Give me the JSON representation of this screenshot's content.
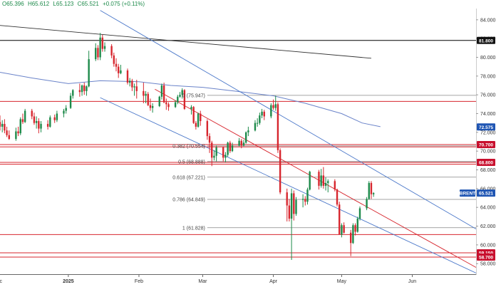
{
  "ohlc": {
    "open": "O65.396",
    "high": "H65.612",
    "low": "L65.123",
    "close": "C65.521",
    "change": "+0.075 (+0.11%)"
  },
  "colors": {
    "up": "#1d8a4a",
    "down": "#d7262e",
    "channel": "#4a77c9",
    "ma": "#6a83c9",
    "trend": "#333333",
    "hline_black": "#000000",
    "hline_red": "#d7262e",
    "tag_blue": "#1f55b3",
    "tag_red": "#c8102e",
    "tag_black": "#111111",
    "fib": "#888888"
  },
  "chart_data": {
    "type": "candlestick",
    "symbol": "BRENT",
    "last_price": "65.521",
    "ylim": [
      56.8,
      85.2
    ],
    "y_ticks": [
      "84.000",
      "82.000",
      "80.000",
      "78.000",
      "76.000",
      "74.000",
      "72.000",
      "70.000",
      "68.000",
      "66.000",
      "64.000",
      "62.000",
      "60.000",
      "58.000"
    ],
    "x_ticks": [
      {
        "label": "Dec",
        "date": "2024-12-01"
      },
      {
        "label": "2025",
        "date": "2025-01-01"
      },
      {
        "label": "Feb",
        "date": "2025-02-01"
      },
      {
        "label": "Mar",
        "date": "2025-03-01"
      },
      {
        "label": "Apr",
        "date": "2025-04-01"
      },
      {
        "label": "May",
        "date": "2025-05-01"
      },
      {
        "label": "Jun",
        "date": "2025-06-01"
      }
    ],
    "xlim": [
      "2024-12-02",
      "2025-06-29"
    ],
    "price_tags": [
      {
        "label": "81.800",
        "value": 81.8,
        "style": "black"
      },
      {
        "label": "72.575",
        "value": 72.575,
        "style": "blue"
      },
      {
        "label": "70.700",
        "value": 70.7,
        "style": "red"
      },
      {
        "label": "68.800",
        "value": 68.8,
        "style": "red"
      },
      {
        "label": "BRENT",
        "value": 65.521,
        "style": "blue"
      },
      {
        "label": "65.521",
        "value": 65.521,
        "style": "blue"
      },
      {
        "label": "59.150",
        "value": 59.15,
        "style": "red"
      },
      {
        "label": "58.700",
        "value": 58.7,
        "style": "red"
      }
    ],
    "horizontal_lines": [
      {
        "value": 81.8,
        "color": "black"
      },
      {
        "value": 75.3,
        "color": "red"
      },
      {
        "value": 70.7,
        "color": "red"
      },
      {
        "value": 70.45,
        "color": "red"
      },
      {
        "value": 68.8,
        "color": "red"
      },
      {
        "value": 68.6,
        "color": "red"
      },
      {
        "value": 61.1,
        "color": "red"
      },
      {
        "value": 59.15,
        "color": "red"
      },
      {
        "value": 58.7,
        "color": "red"
      }
    ],
    "fibonacci": {
      "start_date": "2025-03-03",
      "levels": [
        {
          "label": "0 (75.947)",
          "value": 75.947
        },
        {
          "label": "0.382 (70.554)",
          "value": 70.554
        },
        {
          "label": "0.5 (68.888)",
          "value": 68.888
        },
        {
          "label": "0.618 (67.221)",
          "value": 67.221
        },
        {
          "label": "0.786 (64.849)",
          "value": 64.849
        },
        {
          "label": "1 (61.828)",
          "value": 61.828
        }
      ]
    },
    "trendlines": [
      {
        "name": "downtrend",
        "color": "trend",
        "points": [
          [
            "2024-12-02",
            83.4
          ],
          [
            "2025-05-14",
            79.9
          ]
        ]
      },
      {
        "name": "channel-upper",
        "color": "channel",
        "points": [
          [
            "2025-01-15",
            85.0
          ],
          [
            "2025-06-29",
            61.7
          ]
        ]
      },
      {
        "name": "channel-lower",
        "color": "channel",
        "points": [
          [
            "2025-01-15",
            75.7
          ],
          [
            "2025-06-29",
            57.0
          ]
        ]
      },
      {
        "name": "channel-mid",
        "color": "down",
        "points": [
          [
            "2025-02-08",
            76.6
          ],
          [
            "2025-06-29",
            57.6
          ]
        ]
      }
    ],
    "moving_average": {
      "color": "ma",
      "points": [
        [
          "2024-12-02",
          78.4
        ],
        [
          "2024-12-16",
          77.8
        ],
        [
          "2025-01-01",
          77.2
        ],
        [
          "2025-01-15",
          77.5
        ],
        [
          "2025-02-01",
          77.4
        ],
        [
          "2025-02-15",
          77.0
        ],
        [
          "2025-03-01",
          76.8
        ],
        [
          "2025-03-15",
          76.4
        ],
        [
          "2025-04-01",
          75.9
        ],
        [
          "2025-04-15",
          75.1
        ],
        [
          "2025-05-01",
          74.0
        ],
        [
          "2025-05-10",
          73.0
        ],
        [
          "2025-05-18",
          72.6
        ]
      ]
    },
    "candles": [
      [
        "2024-12-02",
        73.1,
        73.8,
        72.2,
        72.6
      ],
      [
        "2024-12-03",
        72.6,
        73.3,
        72.0,
        72.9
      ],
      [
        "2024-12-04",
        72.9,
        73.4,
        71.9,
        72.2
      ],
      [
        "2024-12-05",
        72.2,
        72.6,
        71.5,
        71.7
      ],
      [
        "2024-12-06",
        71.7,
        72.2,
        71.2,
        71.3
      ],
      [
        "2024-12-09",
        71.3,
        72.5,
        71.1,
        72.1
      ],
      [
        "2024-12-10",
        72.1,
        72.6,
        71.6,
        71.9
      ],
      [
        "2024-12-11",
        71.9,
        73.6,
        71.7,
        73.4
      ],
      [
        "2024-12-12",
        73.4,
        74.0,
        72.9,
        73.1
      ],
      [
        "2024-12-13",
        73.1,
        74.5,
        73.0,
        74.3
      ],
      [
        "2024-12-16",
        74.3,
        74.5,
        73.4,
        73.7
      ],
      [
        "2024-12-17",
        73.7,
        74.1,
        72.8,
        73.0
      ],
      [
        "2024-12-18",
        73.0,
        73.7,
        72.4,
        73.2
      ],
      [
        "2024-12-19",
        73.2,
        73.5,
        71.9,
        72.4
      ],
      [
        "2024-12-20",
        72.4,
        73.2,
        72.0,
        72.9
      ],
      [
        "2024-12-23",
        72.9,
        73.3,
        72.3,
        72.6
      ],
      [
        "2024-12-24",
        72.6,
        73.8,
        72.5,
        73.6
      ],
      [
        "2024-12-26",
        73.6,
        73.9,
        73.0,
        73.3
      ],
      [
        "2024-12-27",
        73.3,
        74.3,
        73.1,
        74.0
      ],
      [
        "2024-12-30",
        74.0,
        74.5,
        73.6,
        74.3
      ],
      [
        "2024-12-31",
        74.3,
        74.9,
        74.0,
        74.6
      ],
      [
        "2025-01-02",
        74.6,
        76.2,
        74.5,
        75.9
      ],
      [
        "2025-01-03",
        75.9,
        76.6,
        75.6,
        76.5
      ],
      [
        "2025-01-06",
        76.5,
        77.2,
        75.8,
        76.3
      ],
      [
        "2025-01-07",
        76.3,
        77.1,
        75.9,
        77.0
      ],
      [
        "2025-01-08",
        77.0,
        77.3,
        76.0,
        76.4
      ],
      [
        "2025-01-09",
        76.4,
        77.0,
        75.9,
        76.9
      ],
      [
        "2025-01-10",
        76.9,
        80.7,
        76.8,
        79.8
      ],
      [
        "2025-01-13",
        79.8,
        81.5,
        79.6,
        81.0
      ],
      [
        "2025-01-14",
        81.0,
        81.3,
        79.7,
        80.0
      ],
      [
        "2025-01-15",
        80.0,
        82.6,
        79.7,
        82.1
      ],
      [
        "2025-01-16",
        82.1,
        82.4,
        80.6,
        80.9
      ],
      [
        "2025-01-17",
        80.9,
        81.6,
        80.6,
        81.2
      ],
      [
        "2025-01-20",
        81.2,
        81.4,
        79.9,
        80.2
      ],
      [
        "2025-01-21",
        80.2,
        80.5,
        79.0,
        79.3
      ],
      [
        "2025-01-22",
        79.3,
        79.9,
        78.5,
        79.0
      ],
      [
        "2025-01-23",
        79.0,
        79.3,
        77.8,
        78.3
      ],
      [
        "2025-01-24",
        78.3,
        79.2,
        78.2,
        78.6
      ],
      [
        "2025-01-27",
        78.6,
        78.8,
        77.1,
        77.3
      ],
      [
        "2025-01-28",
        77.3,
        77.8,
        76.9,
        77.5
      ],
      [
        "2025-01-29",
        77.5,
        77.7,
        76.4,
        76.8
      ],
      [
        "2025-01-30",
        76.8,
        77.2,
        75.9,
        76.9
      ],
      [
        "2025-01-31",
        76.9,
        77.6,
        75.6,
        76.4
      ],
      [
        "2025-02-03",
        76.4,
        77.3,
        75.1,
        75.9
      ],
      [
        "2025-02-04",
        75.9,
        76.4,
        75.1,
        76.1
      ],
      [
        "2025-02-05",
        76.1,
        76.3,
        74.8,
        74.9
      ],
      [
        "2025-02-06",
        74.9,
        75.6,
        74.3,
        74.6
      ],
      [
        "2025-02-07",
        74.6,
        75.1,
        74.1,
        74.8
      ],
      [
        "2025-02-10",
        74.8,
        75.9,
        74.7,
        75.8
      ],
      [
        "2025-02-11",
        75.8,
        77.2,
        75.5,
        77.0
      ],
      [
        "2025-02-12",
        77.0,
        77.3,
        75.1,
        75.2
      ],
      [
        "2025-02-13",
        75.2,
        75.6,
        74.4,
        75.0
      ],
      [
        "2025-02-14",
        75.0,
        75.2,
        74.3,
        74.7
      ],
      [
        "2025-02-17",
        74.7,
        75.4,
        74.6,
        75.2
      ],
      [
        "2025-02-18",
        75.2,
        76.0,
        75.0,
        75.8
      ],
      [
        "2025-02-19",
        75.8,
        76.3,
        75.7,
        76.0
      ],
      [
        "2025-02-20",
        76.0,
        76.7,
        75.6,
        76.5
      ],
      [
        "2025-02-21",
        76.5,
        76.6,
        74.4,
        74.5
      ],
      [
        "2025-02-24",
        74.5,
        74.9,
        73.9,
        74.7
      ],
      [
        "2025-02-25",
        74.7,
        74.8,
        72.9,
        73.0
      ],
      [
        "2025-02-26",
        73.0,
        73.2,
        72.3,
        72.6
      ],
      [
        "2025-02-27",
        72.6,
        74.1,
        72.5,
        74.0
      ],
      [
        "2025-02-28",
        74.0,
        74.3,
        72.7,
        73.2
      ],
      [
        "2025-03-03",
        73.2,
        73.4,
        71.2,
        71.6
      ],
      [
        "2025-03-04",
        71.6,
        71.9,
        69.8,
        70.9
      ],
      [
        "2025-03-05",
        70.9,
        71.1,
        68.4,
        69.3
      ],
      [
        "2025-03-06",
        69.3,
        70.1,
        69.0,
        69.5
      ],
      [
        "2025-03-07",
        69.5,
        70.6,
        68.9,
        70.4
      ],
      [
        "2025-03-10",
        70.4,
        70.5,
        68.9,
        69.3
      ],
      [
        "2025-03-11",
        69.3,
        69.9,
        68.8,
        69.6
      ],
      [
        "2025-03-12",
        69.6,
        71.0,
        69.4,
        70.9
      ],
      [
        "2025-03-13",
        70.9,
        71.1,
        69.8,
        70.0
      ],
      [
        "2025-03-14",
        70.0,
        70.9,
        69.9,
        70.6
      ],
      [
        "2025-03-17",
        70.6,
        71.4,
        70.5,
        71.1
      ],
      [
        "2025-03-18",
        71.1,
        71.3,
        70.3,
        70.6
      ],
      [
        "2025-03-19",
        70.6,
        71.2,
        70.5,
        70.9
      ],
      [
        "2025-03-20",
        70.9,
        72.1,
        70.8,
        72.0
      ],
      [
        "2025-03-21",
        72.0,
        72.6,
        71.6,
        72.2
      ],
      [
        "2025-03-24",
        72.2,
        73.3,
        72.1,
        73.0
      ],
      [
        "2025-03-25",
        73.0,
        73.5,
        72.6,
        73.0
      ],
      [
        "2025-03-26",
        73.0,
        74.1,
        72.8,
        73.8
      ],
      [
        "2025-03-27",
        73.8,
        74.5,
        73.5,
        74.2
      ],
      [
        "2025-03-28",
        74.2,
        74.4,
        73.3,
        73.7
      ],
      [
        "2025-03-31",
        73.7,
        75.1,
        73.5,
        74.9
      ],
      [
        "2025-04-01",
        74.9,
        75.5,
        74.4,
        74.6
      ],
      [
        "2025-04-02",
        74.6,
        75.9,
        74.3,
        75.0
      ],
      [
        "2025-04-03",
        75.0,
        75.2,
        69.8,
        70.1
      ],
      [
        "2025-04-04",
        70.1,
        70.3,
        65.4,
        65.6
      ],
      [
        "2025-04-07",
        65.6,
        66.0,
        62.5,
        64.2
      ],
      [
        "2025-04-08",
        64.2,
        64.9,
        62.5,
        62.8
      ],
      [
        "2025-04-09",
        62.8,
        66.0,
        58.4,
        65.5
      ],
      [
        "2025-04-10",
        65.5,
        65.8,
        62.6,
        63.3
      ],
      [
        "2025-04-11",
        63.3,
        65.1,
        63.1,
        64.8
      ],
      [
        "2025-04-14",
        64.8,
        65.4,
        64.0,
        64.9
      ],
      [
        "2025-04-15",
        64.9,
        65.2,
        64.2,
        64.6
      ],
      [
        "2025-04-16",
        64.6,
        66.1,
        64.3,
        65.9
      ],
      [
        "2025-04-17",
        65.9,
        67.9,
        65.8,
        67.8
      ],
      [
        "2025-04-21",
        67.8,
        68.0,
        65.9,
        66.3
      ],
      [
        "2025-04-22",
        66.3,
        68.1,
        66.1,
        67.4
      ],
      [
        "2025-04-23",
        67.4,
        68.3,
        66.0,
        66.3
      ],
      [
        "2025-04-24",
        66.3,
        67.2,
        65.8,
        66.6
      ],
      [
        "2025-04-25",
        66.6,
        67.0,
        65.6,
        66.8
      ],
      [
        "2025-04-28",
        66.8,
        67.0,
        65.7,
        65.9
      ],
      [
        "2025-04-29",
        65.9,
        66.0,
        64.1,
        64.3
      ],
      [
        "2025-04-30",
        64.3,
        64.6,
        61.2,
        61.1
      ],
      [
        "2025-05-01",
        61.1,
        62.3,
        60.8,
        62.1
      ],
      [
        "2025-05-02",
        62.1,
        62.4,
        61.2,
        61.3
      ],
      [
        "2025-05-05",
        61.3,
        61.6,
        58.8,
        60.2
      ],
      [
        "2025-05-06",
        60.2,
        62.3,
        60.1,
        62.1
      ],
      [
        "2025-05-07",
        62.1,
        62.3,
        61.0,
        61.4
      ],
      [
        "2025-05-08",
        61.4,
        63.0,
        61.3,
        62.8
      ],
      [
        "2025-05-09",
        62.8,
        64.1,
        62.6,
        63.9
      ],
      [
        "2025-05-12",
        63.9,
        65.1,
        63.7,
        64.9
      ],
      [
        "2025-05-13",
        64.9,
        66.8,
        64.8,
        66.6
      ],
      [
        "2025-05-14",
        66.6,
        66.8,
        64.9,
        65.4
      ],
      [
        "2025-05-15",
        65.396,
        65.612,
        65.123,
        65.521
      ]
    ]
  }
}
